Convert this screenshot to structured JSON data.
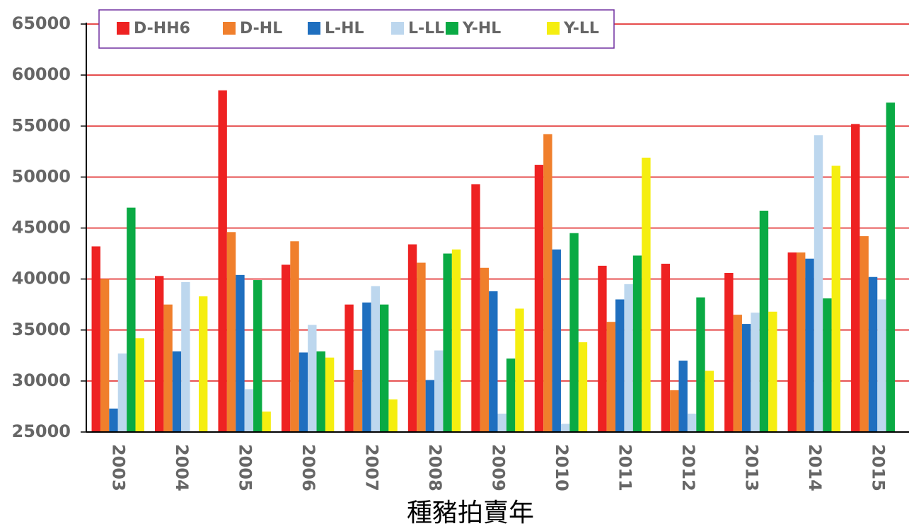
{
  "chart_data": {
    "type": "bar",
    "x_label": "種豬拍賣年",
    "categories": [
      "2003",
      "2004",
      "2005",
      "2006",
      "2007",
      "2008",
      "2009",
      "2010",
      "2011",
      "2012",
      "2013",
      "2014",
      "2015"
    ],
    "series": [
      {
        "name": "D-HH6",
        "color": "#ee2222",
        "values": [
          43200,
          40300,
          58500,
          41400,
          37500,
          43400,
          49300,
          51200,
          41300,
          41500,
          40600,
          42600,
          55200
        ]
      },
      {
        "name": "D-HL",
        "color": "#f07f2c",
        "values": [
          40000,
          37500,
          44600,
          43700,
          31100,
          41600,
          41100,
          54200,
          35800,
          29100,
          36500,
          42600,
          44200
        ]
      },
      {
        "name": "L-HL",
        "color": "#1f6fbf",
        "values": [
          27300,
          32900,
          40400,
          32800,
          37700,
          30100,
          38800,
          42900,
          38000,
          32000,
          35600,
          42000,
          40200
        ]
      },
      {
        "name": "L-LL",
        "color": "#bdd7ee",
        "values": [
          32700,
          39700,
          29200,
          35500,
          39300,
          33000,
          26800,
          25800,
          39500,
          26800,
          36700,
          54100,
          38000
        ]
      },
      {
        "name": "Y-HL",
        "color": "#0aaa44",
        "values": [
          47000,
          null,
          39900,
          32900,
          37500,
          42500,
          32200,
          44500,
          42300,
          38200,
          46700,
          38100,
          57300
        ]
      },
      {
        "name": "Y-LL",
        "color": "#f5ee10",
        "values": [
          34200,
          38300,
          27000,
          32300,
          28200,
          42900,
          37100,
          33800,
          51900,
          31000,
          36800,
          51100,
          null
        ]
      }
    ],
    "ylim": [
      25000,
      65000
    ],
    "yticks": [
      25000,
      30000,
      35000,
      40000,
      45000,
      50000,
      55000,
      60000,
      65000
    ],
    "grid": true,
    "grid_color": "#dd1111",
    "legend": "top"
  }
}
